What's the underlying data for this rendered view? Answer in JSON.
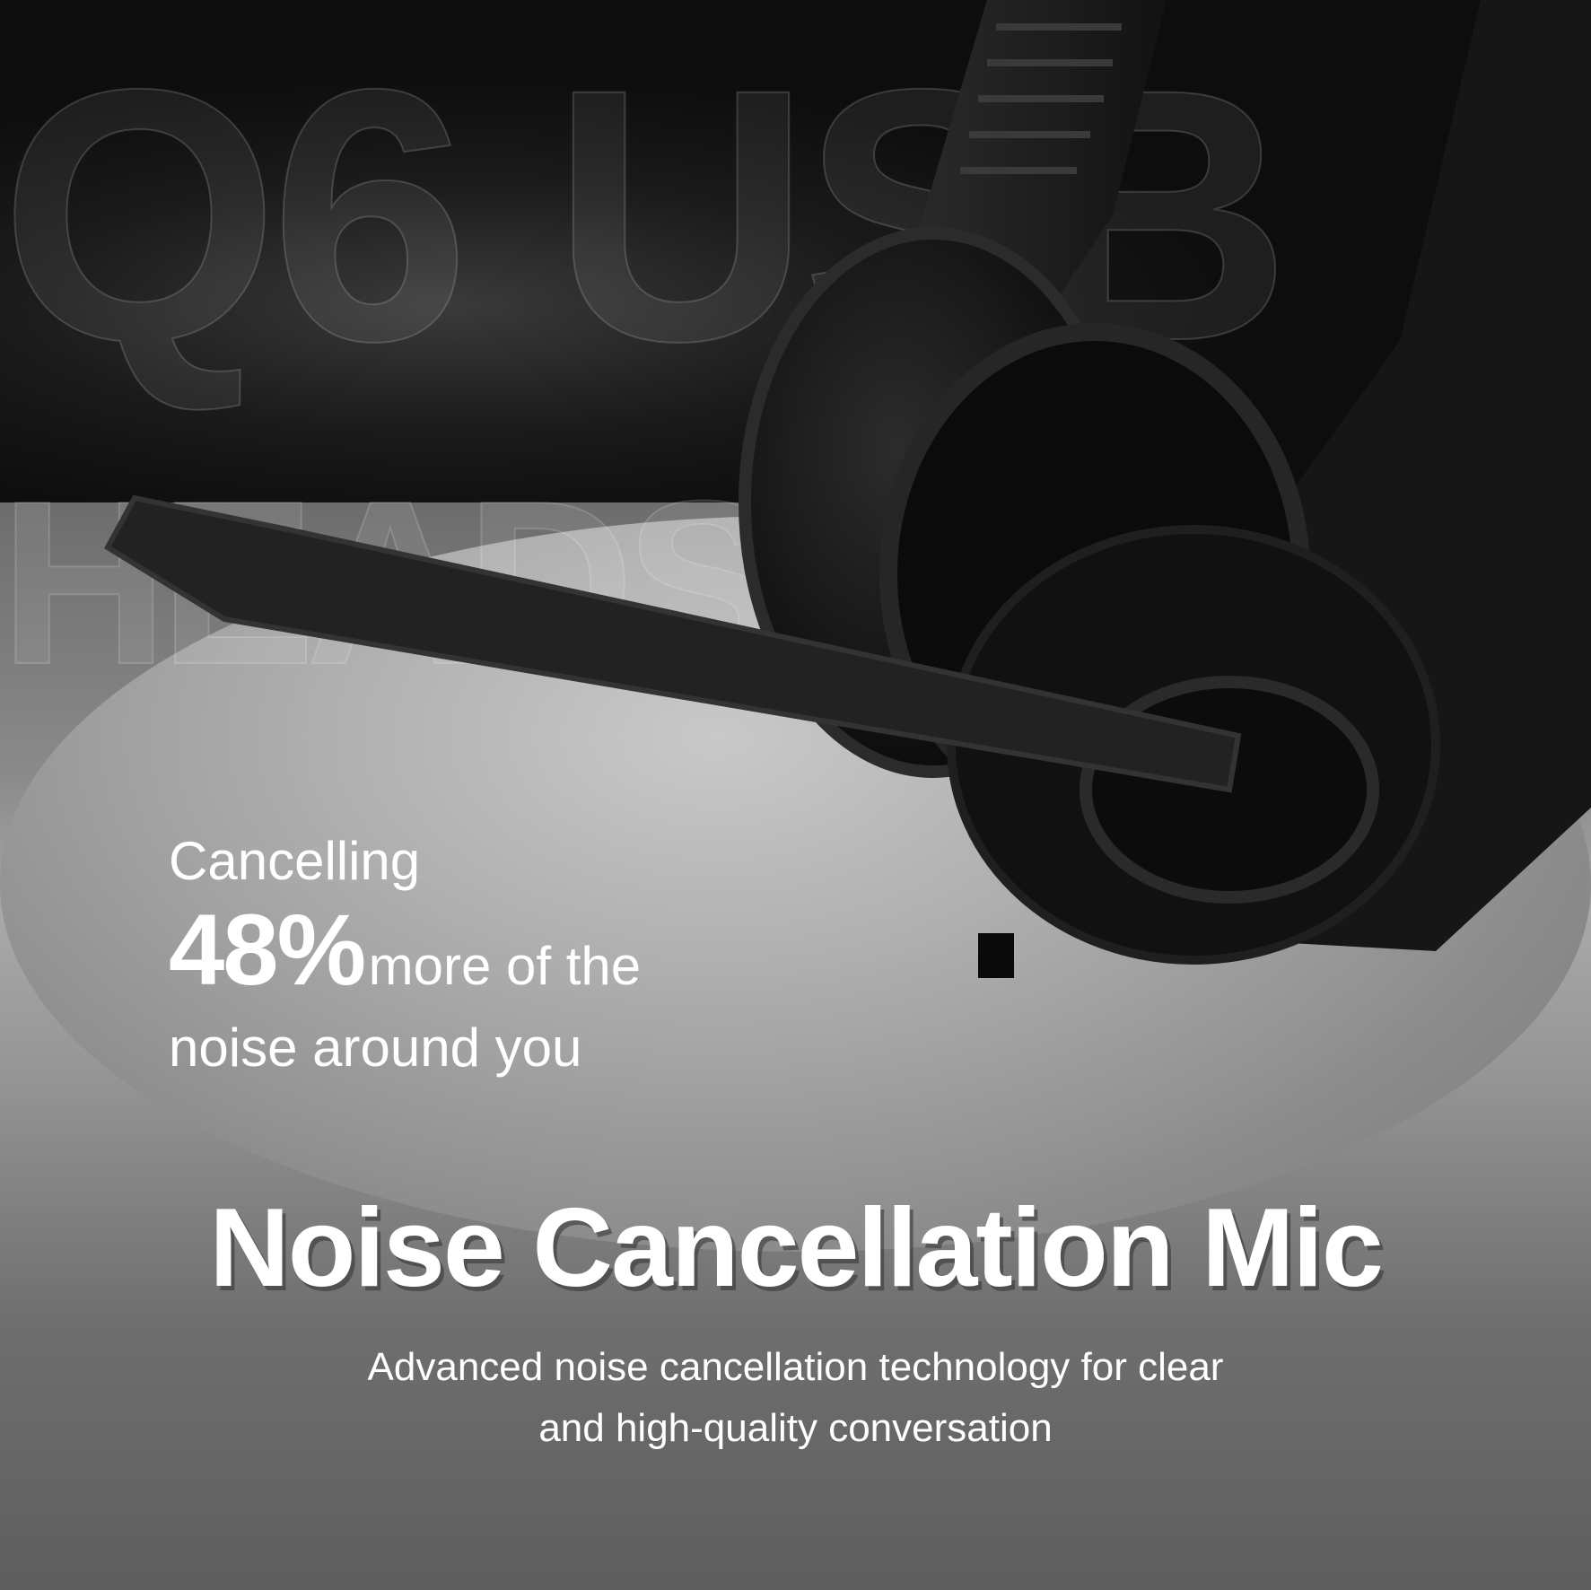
{
  "watermark": {
    "line1": "Q6 USB",
    "line2": "HEADSET"
  },
  "feature": {
    "lead": "Cancelling",
    "percent": "48%",
    "percent_suffix": "more of the",
    "line3": "noise around you",
    "title": "Noise Cancellation Mic",
    "description_line1": "Advanced noise cancellation technology for clear",
    "description_line2": "and high-quality conversation"
  },
  "colors": {
    "text": "#ffffff",
    "background_dark": "#111111",
    "background_light": "#a9a8a9"
  }
}
